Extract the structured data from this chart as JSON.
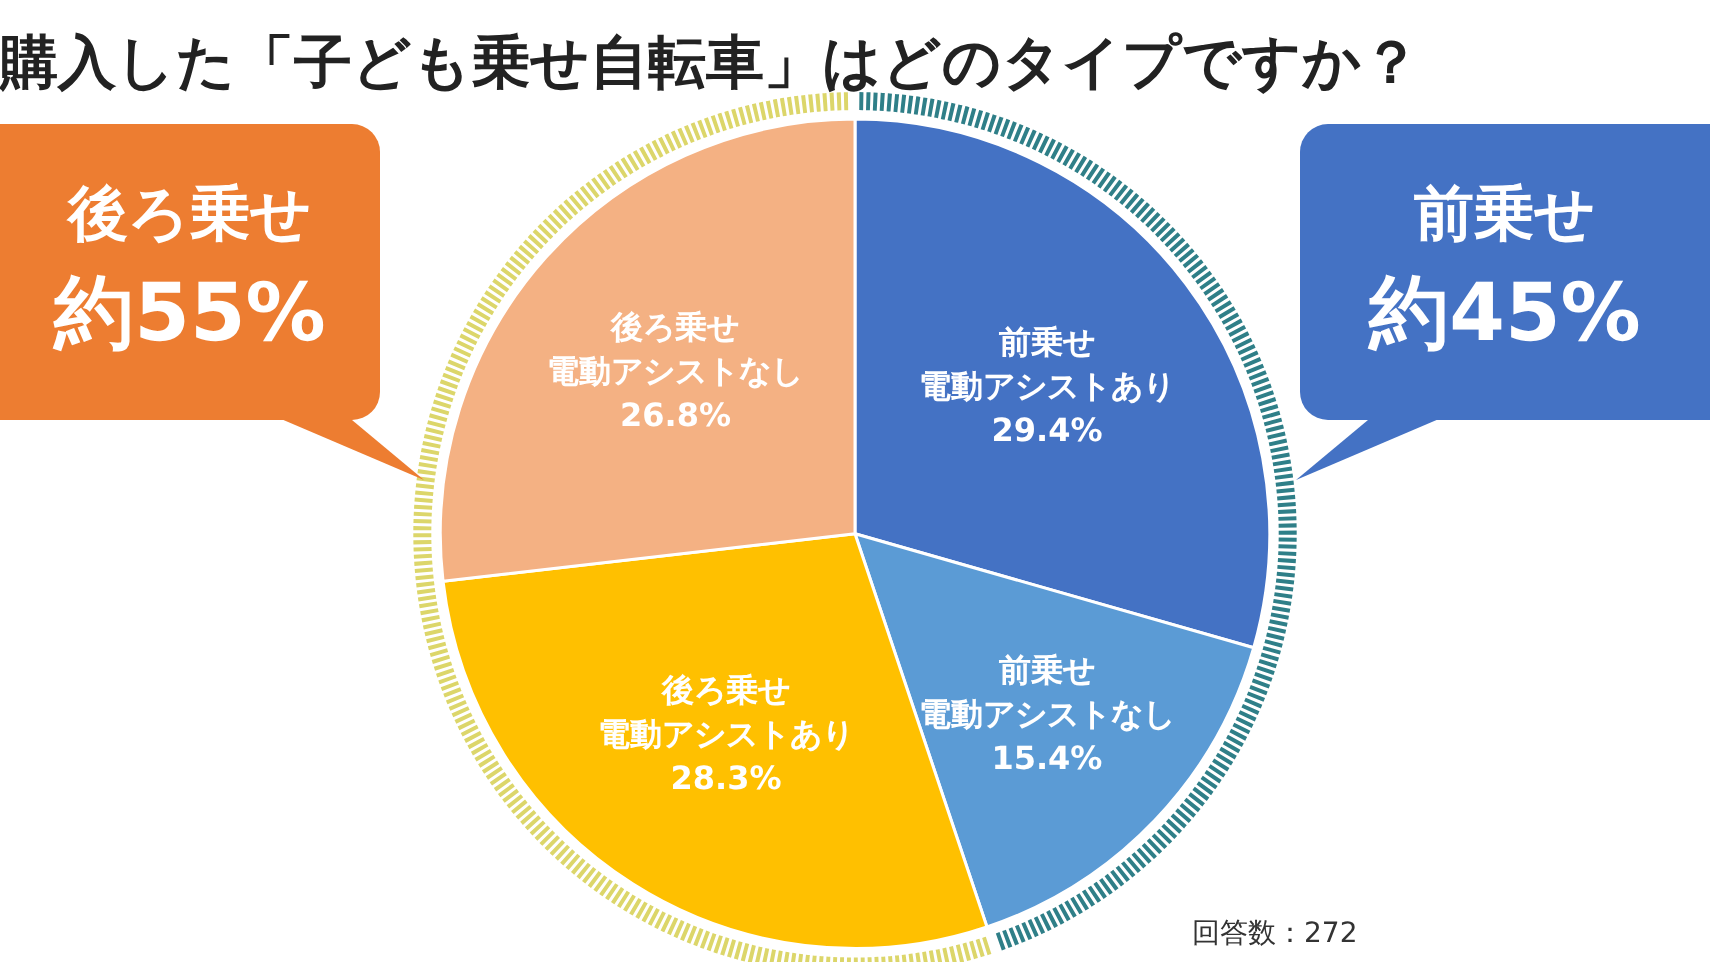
{
  "chart_data": {
    "type": "pie",
    "title": "購入した「子ども乗せ自転車」はどのタイプですか？",
    "categories": [
      "前乗せ電動アシストあり",
      "前乗せ電動アシストなし",
      "後ろ乗せ電動アシストあり",
      "後ろ乗せ電動アシストなし"
    ],
    "values": [
      29.4,
      15.4,
      28.3,
      26.8
    ],
    "value_labels": [
      "29.4%",
      "15.4%",
      "28.3%",
      "26.8%"
    ],
    "colors": [
      "#4472c4",
      "#5b9bd5",
      "#ffc000",
      "#f4b183"
    ],
    "legend": false,
    "annotations": [
      "後ろ乗せ約55%",
      "前乗せ約45%",
      "回答数：272"
    ]
  }
}
